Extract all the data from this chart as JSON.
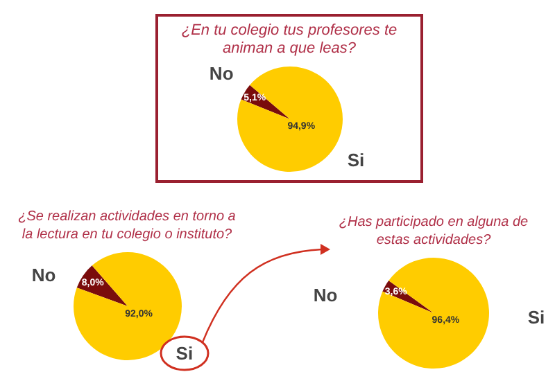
{
  "chart_data": [
    {
      "type": "pie",
      "title": "¿En tu colegio tus profesores te animan a que leas?",
      "categories": [
        "No",
        "Si"
      ],
      "values": [
        5.1,
        94.9
      ],
      "colors": [
        "#7a0c0c",
        "#ffcc00"
      ],
      "value_labels": [
        "5,1%",
        "94,9%"
      ],
      "legend": false
    },
    {
      "type": "pie",
      "title": "¿Se realizan actividades en torno a la lectura en tu colegio o instituto?",
      "categories": [
        "No",
        "Si"
      ],
      "values": [
        8.0,
        92.0
      ],
      "colors": [
        "#7a0c0c",
        "#ffcc00"
      ],
      "value_labels": [
        "8,0%",
        "92,0%"
      ],
      "legend": false
    },
    {
      "type": "pie",
      "title": "¿Has participado en alguna de estas actividades?",
      "categories": [
        "No",
        "Si"
      ],
      "values": [
        3.6,
        96.4
      ],
      "colors": [
        "#7a0c0c",
        "#ffcc00"
      ],
      "value_labels": [
        "3,6%",
        "96,4%"
      ],
      "legend": false
    }
  ]
}
